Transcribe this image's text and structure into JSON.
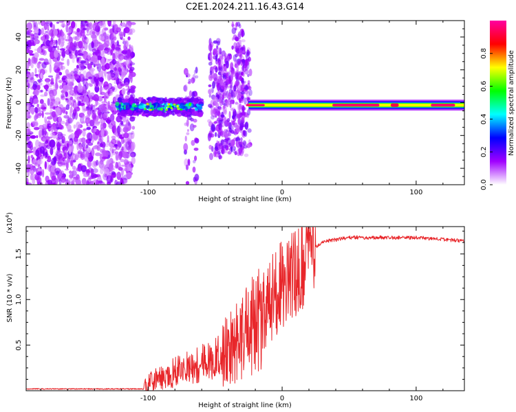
{
  "title": "C2E1.2024.211.16.43.G14",
  "chart_data": [
    {
      "type": "heatmap",
      "xlabel": "Height of straight line (km)",
      "ylabel": "Frequency (Hz)",
      "xlim": [
        -191,
        136
      ],
      "ylim": [
        -50,
        50
      ],
      "xticks": [
        -100,
        0,
        100
      ],
      "xtick_labels": [
        "-100",
        "0",
        "100"
      ],
      "yticks": [
        -40,
        -20,
        0,
        20,
        40
      ],
      "ytick_labels": [
        "-40",
        "-20",
        "0",
        "20",
        "40"
      ],
      "grid": false,
      "colorbar": {
        "label": "Normalized spectral amplitude",
        "range": [
          0,
          1
        ],
        "ticks": [
          0,
          0.2,
          0.4,
          0.6,
          0.8
        ],
        "tick_labels": [
          "0.0",
          "0.2",
          "0.4",
          "0.6",
          "0.8"
        ],
        "colors": [
          "#ffffff",
          "#a000ff",
          "#0000ff",
          "#00ffff",
          "#00ff00",
          "#ffff00",
          "#ff0000",
          "#ff00a0"
        ]
      },
      "regions": [
        {
          "name": "noise-wide",
          "x": [
            -191,
            -111
          ],
          "freq": [
            -50,
            50
          ],
          "level": 0.15
        },
        {
          "name": "signal-onset",
          "x": [
            -123,
            -60
          ],
          "freq_center": -2.5,
          "width_hz": 10,
          "level": 0.4
        },
        {
          "name": "burst-zone",
          "x": [
            -70,
            -25
          ],
          "freq": [
            -48,
            35
          ],
          "level": 0.2
        },
        {
          "name": "stable-line",
          "x": [
            -25,
            136
          ],
          "freq_center": -1.5,
          "width_hz": 5,
          "level": 0.95
        }
      ]
    },
    {
      "type": "line",
      "xlabel": "Height of straight line (km)",
      "ylabel": "SNR (10 * v/v)",
      "y_multiplier": "(x10",
      "y_multiplier_exp": "4",
      "y_multiplier_close": ")",
      "xlim": [
        -191,
        136
      ],
      "ylim": [
        0,
        1.8
      ],
      "xticks": [
        -100,
        0,
        100
      ],
      "xtick_labels": [
        "-100",
        "0",
        "100"
      ],
      "yticks": [
        0.5,
        1.0,
        1.5
      ],
      "ytick_labels": [
        "0.5",
        "1.0",
        "1.5"
      ],
      "grid": false,
      "series_color": "#e8262a",
      "profile": [
        {
          "x": -191,
          "y": 0.02
        },
        {
          "x": -103,
          "y": 0.02
        },
        {
          "x": -100,
          "y": 0.08
        },
        {
          "x": -90,
          "y": 0.15
        },
        {
          "x": -70,
          "y": 0.25
        },
        {
          "x": -50,
          "y": 0.35
        },
        {
          "x": -35,
          "y": 0.5
        },
        {
          "x": -27,
          "y": 0.7
        },
        {
          "x": -20,
          "y": 0.7
        },
        {
          "x": -15,
          "y": 0.9
        },
        {
          "x": -5,
          "y": 1.1
        },
        {
          "x": 5,
          "y": 1.2
        },
        {
          "x": 15,
          "y": 1.35
        },
        {
          "x": 20,
          "y": 1.45
        },
        {
          "x": 25,
          "y": 1.58
        },
        {
          "x": 32,
          "y": 1.64
        },
        {
          "x": 50,
          "y": 1.68
        },
        {
          "x": 100,
          "y": 1.68
        },
        {
          "x": 120,
          "y": 1.66
        },
        {
          "x": 136,
          "y": 1.64
        }
      ]
    }
  ]
}
